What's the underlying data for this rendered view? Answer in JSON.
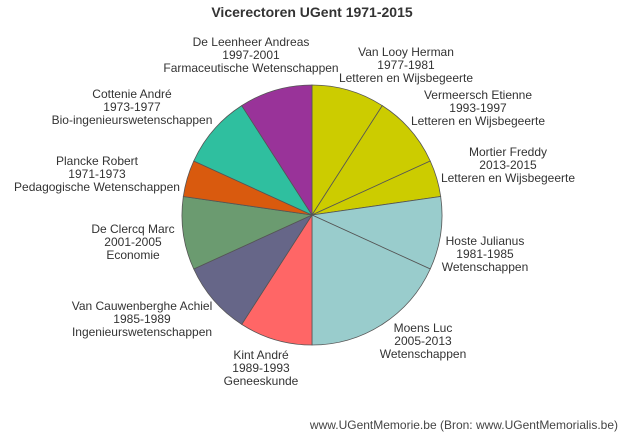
{
  "chart_data": {
    "type": "pie",
    "title": "Vicerectoren UGent 1971-2015",
    "credits": "www.UGentMemorie.be (Bron: www.UGentMemorialis.be)",
    "slices": [
      {
        "name": "Van Looy Herman",
        "period": "1977-1981",
        "faculty": "Letteren en Wijsbegeerte",
        "value": 4,
        "color": "#cccc00"
      },
      {
        "name": "Vermeersch Etienne",
        "period": "1993-1997",
        "faculty": "Letteren en Wijsbegeerte",
        "value": 4,
        "color": "#cccc00"
      },
      {
        "name": "Mortier Freddy",
        "period": "2013-2015",
        "faculty": "Letteren en Wijsbegeerte",
        "value": 2,
        "color": "#cccc00"
      },
      {
        "name": "Hoste Julianus",
        "period": "1981-1985",
        "faculty": "Wetenschappen",
        "value": 4,
        "color": "#99cccc"
      },
      {
        "name": "Moens Luc",
        "period": "2005-2013",
        "faculty": "Wetenschappen",
        "value": 8,
        "color": "#99cccc"
      },
      {
        "name": "Kint André",
        "period": "1989-1993",
        "faculty": "Geneeskunde",
        "value": 4,
        "color": "#ff6666"
      },
      {
        "name": "Van Cauwenberghe Achiel",
        "period": "1985-1989",
        "faculty": "Ingenieurswetenschappen",
        "value": 4,
        "color": "#666688"
      },
      {
        "name": "De Clercq Marc",
        "period": "2001-2005",
        "faculty": "Economie",
        "value": 4,
        "color": "#6b9b70"
      },
      {
        "name": "Plancke Robert",
        "period": "1971-1973",
        "faculty": "Pedagogische Wetenschappen",
        "value": 2,
        "color": "#d95a0e"
      },
      {
        "name": "Cottenie André",
        "period": "1973-1977",
        "faculty": "Bio-ingenieurswetenschappen",
        "value": 4,
        "color": "#2fbf9f"
      },
      {
        "name": "De Leenheer Andreas",
        "period": "1997-2001",
        "faculty": "Farmaceutische Wetenschappen",
        "value": 4,
        "color": "#993399"
      }
    ]
  }
}
